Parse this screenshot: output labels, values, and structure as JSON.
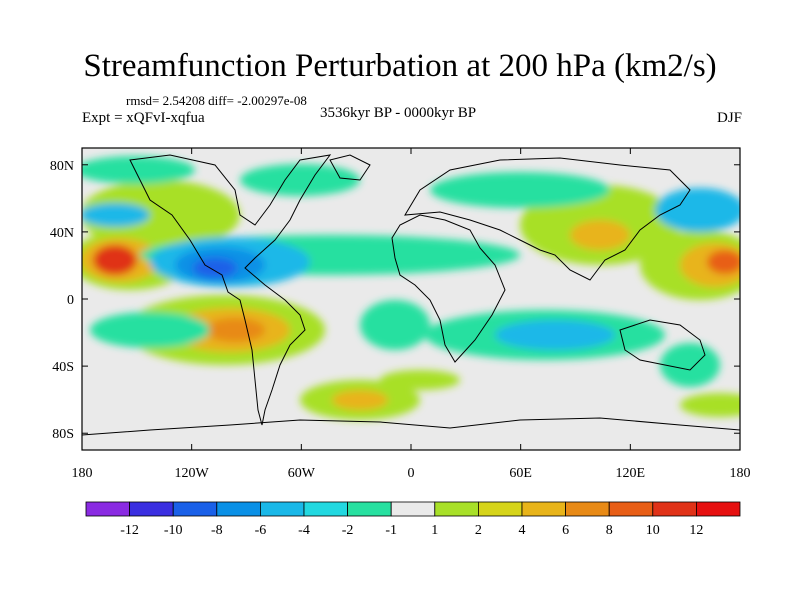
{
  "chart_data": {
    "type": "heatmap",
    "title": "Streamfunction Perturbation at 200 hPa (km2/s)",
    "stats_text": "rmsd= 2.54208 diff= -2.00297e-08",
    "left_label": "Expt = xQFvI-xqfua",
    "center_label": "3536kyr BP - 0000kyr BP",
    "right_label": "DJF",
    "x_axis": {
      "range": [
        -180,
        180
      ],
      "ticks": [
        -180,
        -120,
        -60,
        0,
        60,
        120,
        180
      ],
      "tick_labels": [
        "180",
        "120W",
        "60W",
        "0",
        "60E",
        "120E",
        "180"
      ]
    },
    "y_axis": {
      "range": [
        -90,
        90
      ],
      "ticks": [
        80,
        40,
        0,
        -40,
        -80
      ],
      "tick_labels": [
        "80N",
        "40N",
        "0",
        "40S",
        "80S"
      ]
    },
    "colorbar": {
      "labels": [
        "-12",
        "-10",
        "-8",
        "-6",
        "-4",
        "-2",
        "-1",
        "1",
        "2",
        "4",
        "6",
        "8",
        "10",
        "12"
      ],
      "colors": [
        "#8a2be2",
        "#3a2ee0",
        "#1a60e8",
        "#0a90e6",
        "#1ab8e8",
        "#22d8e0",
        "#27e0a0",
        "#eaeaea",
        "#a8e028",
        "#d6d41a",
        "#e8b41a",
        "#e88a16",
        "#e85e16",
        "#e03218",
        "#e61010"
      ]
    },
    "features": [
      {
        "name": "Central Pacific high (north)",
        "lon": -165,
        "lat": 20,
        "value": 11
      },
      {
        "name": "Western Pacific high (north)",
        "lon": 165,
        "lat": 20,
        "value": 9
      },
      {
        "name": "Mexico low",
        "lon": -105,
        "lat": 15,
        "value": -9
      },
      {
        "name": "Tropical Atlantic low",
        "lon": -10,
        "lat": 18,
        "value": -4
      },
      {
        "name": "Indian Ocean low",
        "lon": 75,
        "lat": -20,
        "value": -4
      },
      {
        "name": "South Pacific high",
        "lon": -110,
        "lat": -20,
        "value": 7
      },
      {
        "name": "South Atlantic high",
        "lon": -30,
        "lat": -55,
        "value": 4
      },
      {
        "name": "Asia high",
        "lon": 110,
        "lat": 30,
        "value": 5
      }
    ]
  }
}
